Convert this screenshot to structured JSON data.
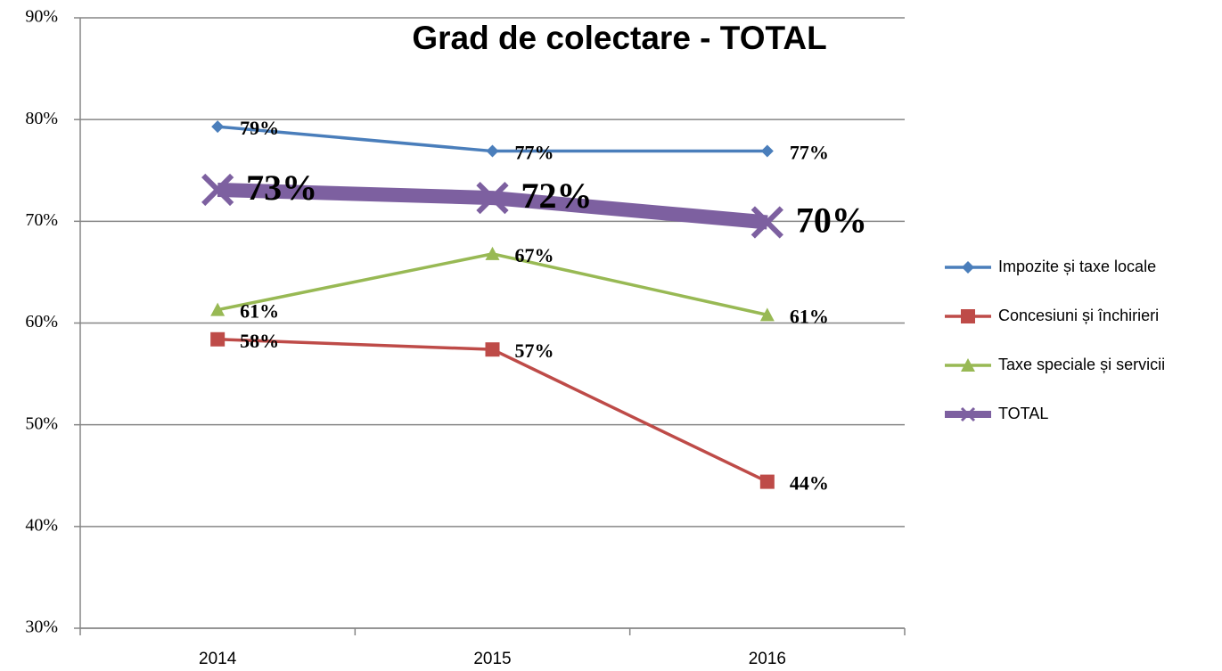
{
  "chart_data": {
    "type": "line",
    "title": "Grad de colectare - TOTAL",
    "categories": [
      "2014",
      "2015",
      "2016"
    ],
    "series": [
      {
        "name": "Impozite și taxe locale",
        "color": "#4a7ebb",
        "marker": "diamond",
        "values": [
          79.3,
          76.9,
          76.9
        ],
        "value_labels": [
          "79%",
          "77%",
          "77%"
        ]
      },
      {
        "name": "Concesiuni și închirieri",
        "color": "#be4b48",
        "marker": "square",
        "values": [
          58.4,
          57.4,
          44.4
        ],
        "value_labels": [
          "58%",
          "57%",
          "44%"
        ]
      },
      {
        "name": "Taxe speciale și servicii",
        "color": "#98b954",
        "marker": "triangle",
        "values": [
          61.3,
          66.8,
          60.8
        ],
        "value_labels": [
          "61%",
          "67%",
          "61%"
        ]
      },
      {
        "name": "TOTAL",
        "color": "#7d60a0",
        "marker": "x",
        "values": [
          73.1,
          72.3,
          69.9
        ],
        "value_labels": [
          "73%",
          "72%",
          "70%"
        ]
      }
    ],
    "ylim": [
      30,
      90
    ],
    "yticks": [
      {
        "value": 30,
        "label": "30%"
      },
      {
        "value": 40,
        "label": "40%"
      },
      {
        "value": 50,
        "label": "50%"
      },
      {
        "value": 60,
        "label": "60%"
      },
      {
        "value": 70,
        "label": "70%"
      },
      {
        "value": 80,
        "label": "80%"
      },
      {
        "value": 90,
        "label": "90%"
      }
    ],
    "grid": true,
    "legend": "right"
  }
}
